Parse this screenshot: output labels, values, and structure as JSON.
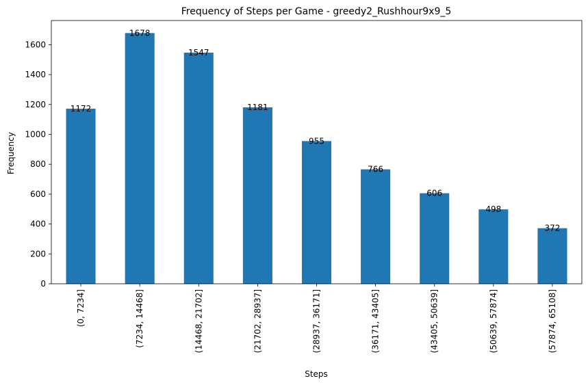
{
  "chart_data": {
    "type": "bar",
    "title": "Frequency of Steps per Game - greedy2_Rushhour9x9_5",
    "xlabel": "Steps",
    "ylabel": "Frequency",
    "categories": [
      "(0, 7234]",
      "(7234, 14468]",
      "(14468, 21702]",
      "(21702, 28937]",
      "(28937, 36171]",
      "(36171, 43405]",
      "(43405, 50639]",
      "(50639, 57874]",
      "(57874, 65108]"
    ],
    "values": [
      1172,
      1678,
      1547,
      1181,
      955,
      766,
      606,
      498,
      372
    ],
    "value_labels": [
      "1172",
      "1678",
      "1547",
      "1181",
      "955",
      "766",
      "606",
      "498",
      "372"
    ],
    "yticks": [
      0,
      200,
      400,
      600,
      800,
      1000,
      1200,
      1400,
      1600
    ],
    "ytick_labels": [
      "0",
      "200",
      "400",
      "600",
      "800",
      "1000",
      "1200",
      "1400",
      "1600"
    ],
    "ylim": [
      0,
      1762
    ],
    "bar_color": "#1f77b4",
    "grid": false,
    "legend": "none"
  }
}
